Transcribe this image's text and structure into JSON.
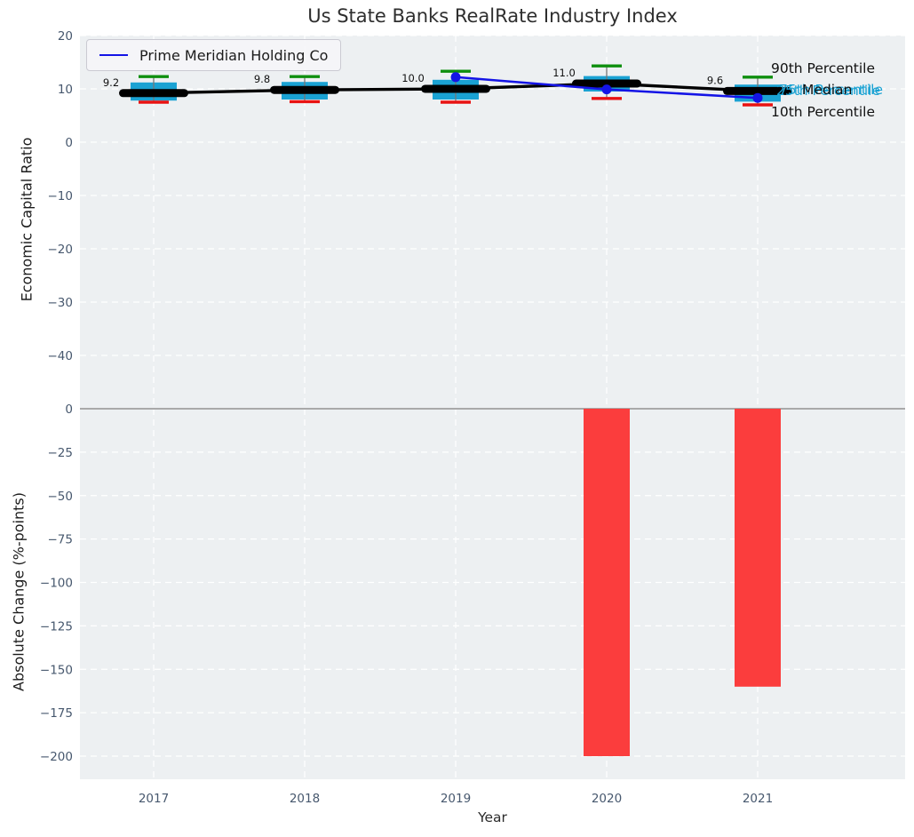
{
  "title": "Us State Banks RealRate Industry Index",
  "legend": {
    "label": "Prime Meridian Holding Co"
  },
  "annotations": {
    "p90": "90th Percentile",
    "p75": "75th Percentile",
    "median": "Median",
    "p25": "25th Percentile",
    "p10": "10th Percentile"
  },
  "colors": {
    "box_fill": "#1aa2d3",
    "cap_90": "#0e8f0e",
    "cap_10": "#e81212",
    "median_line": "#000000",
    "company_line": "#1414e6",
    "bar_fill": "#fb3d3d",
    "plot_bg": "#edf0f2",
    "grid": "#ffffff",
    "zero_line": "#a9a9a9",
    "tick_text": "#47586e",
    "whisker": "#777777",
    "label_text": "#111111"
  },
  "chart_data": [
    {
      "type": "box",
      "title": "Us State Banks RealRate Industry Index",
      "ylabel": "Economic Capital Ratio",
      "ylim": [
        -49,
        20
      ],
      "yticks": [
        20,
        10,
        0,
        -10,
        -20,
        -30,
        -40
      ],
      "ytick_labels": [
        "20",
        "10",
        "0",
        "−10",
        "−20",
        "−30",
        "−40"
      ],
      "categories": [
        "2017",
        "2018",
        "2019",
        "2020",
        "2021"
      ],
      "boxes": [
        {
          "year": "2017",
          "p10": 7.5,
          "p25": 7.8,
          "median": 9.2,
          "p75": 11.2,
          "p90": 12.3,
          "label": "9.2"
        },
        {
          "year": "2018",
          "p10": 7.6,
          "p25": 8.0,
          "median": 9.8,
          "p75": 11.3,
          "p90": 12.3,
          "label": "9.8"
        },
        {
          "year": "2019",
          "p10": 7.5,
          "p25": 8.0,
          "median": 10.0,
          "p75": 11.7,
          "p90": 13.3,
          "label": "10.0"
        },
        {
          "year": "2020",
          "p10": 8.2,
          "p25": 9.5,
          "median": 11.0,
          "p75": 12.4,
          "p90": 14.3,
          "label": "11.0"
        },
        {
          "year": "2021",
          "p10": 7.0,
          "p25": 7.6,
          "median": 9.6,
          "p75": 10.8,
          "p90": 12.2,
          "label": "9.6"
        }
      ],
      "series": [
        {
          "name": "Prime Meridian Holding Co",
          "color": "#1414e6",
          "x": [
            "2019",
            "2020",
            "2021"
          ],
          "values": [
            12.2,
            9.9,
            8.3
          ]
        }
      ],
      "legend_position": "upper left",
      "grid": true
    },
    {
      "type": "bar",
      "ylabel": "Absolute Change (%-points)",
      "xlabel": "Year",
      "ylim": [
        -212,
        3
      ],
      "yticks": [
        0,
        -25,
        -50,
        -75,
        -100,
        -125,
        -150,
        -175,
        -200
      ],
      "ytick_labels": [
        "0",
        "−25",
        "−50",
        "−75",
        "−100",
        "−125",
        "−150",
        "−175",
        "−200"
      ],
      "categories": [
        "2017",
        "2018",
        "2019",
        "2020",
        "2021"
      ],
      "values": [
        null,
        null,
        null,
        -200,
        -160
      ],
      "grid": true
    }
  ]
}
